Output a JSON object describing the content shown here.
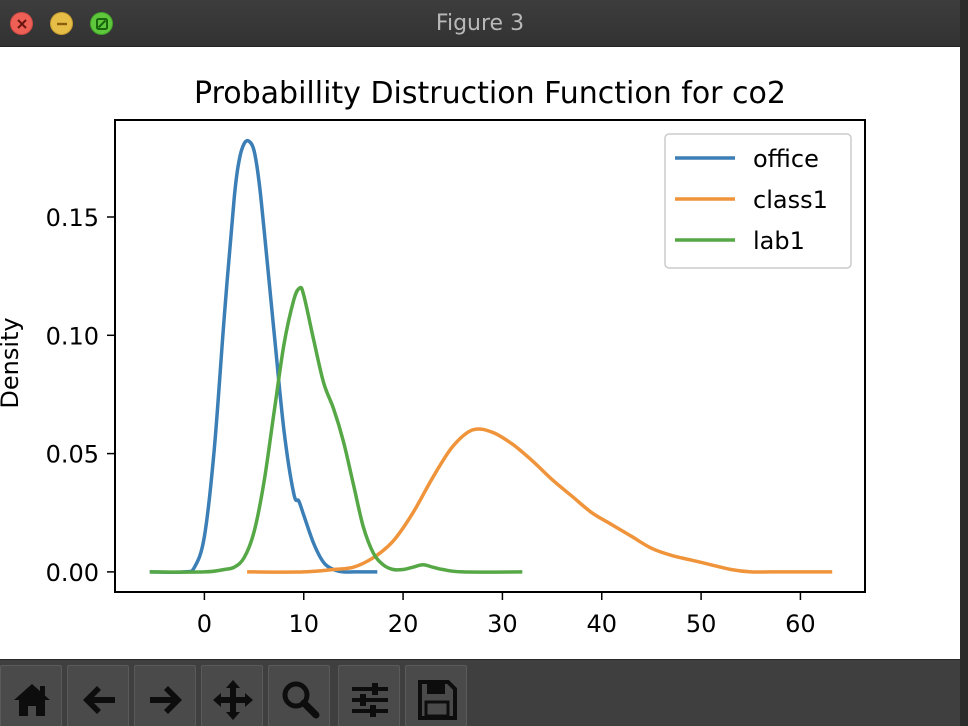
{
  "window": {
    "title": "Figure 3",
    "buttons": [
      "close",
      "minimize",
      "maximize"
    ]
  },
  "toolbar": {
    "tools": [
      {
        "name": "home-icon"
      },
      {
        "name": "back-icon"
      },
      {
        "name": "forward-icon"
      },
      {
        "name": "pan-icon"
      },
      {
        "name": "zoom-icon"
      },
      {
        "name": "configure-subplots-icon"
      },
      {
        "name": "save-icon"
      }
    ]
  },
  "chart_data": {
    "type": "line",
    "title": "Probabillity Distruction Function for co2",
    "xlabel": "",
    "ylabel": "Density",
    "xlim": [
      -9,
      66.5
    ],
    "ylim": [
      -0.0085,
      0.191
    ],
    "xticks": [
      0,
      10,
      20,
      30,
      40,
      50,
      60
    ],
    "yticks": [
      0.0,
      0.05,
      0.1,
      0.15
    ],
    "xtick_labels": [
      "0",
      "10",
      "20",
      "30",
      "40",
      "50",
      "60"
    ],
    "ytick_labels": [
      "0.00",
      "0.05",
      "0.10",
      "0.15"
    ],
    "grid": false,
    "legend": {
      "position": "top-right",
      "entries": [
        "office",
        "class1",
        "lab1"
      ]
    },
    "series": [
      {
        "name": "office",
        "color": "#3b7fb6",
        "x": [
          -5.5,
          -2,
          -1,
          0,
          1,
          2,
          3,
          3.5,
          4,
          4.5,
          5,
          5.5,
          6,
          7,
          8,
          9,
          9.5,
          10,
          11,
          12,
          13,
          14,
          15,
          16,
          17.4
        ],
        "y": [
          0.0,
          0.0,
          0.002,
          0.015,
          0.052,
          0.108,
          0.158,
          0.174,
          0.181,
          0.182,
          0.178,
          0.165,
          0.145,
          0.102,
          0.06,
          0.033,
          0.03,
          0.024,
          0.012,
          0.004,
          0.001,
          0.0,
          0.0,
          0.0,
          0.0
        ]
      },
      {
        "name": "class1",
        "color": "#f0943b",
        "x": [
          4.3,
          10,
          13,
          15,
          17,
          19,
          21,
          23,
          25,
          27,
          29,
          31,
          33,
          35,
          37,
          39,
          41,
          43,
          45,
          47,
          49,
          51,
          53,
          55,
          57,
          63.2
        ],
        "y": [
          0.0,
          0.0,
          0.001,
          0.002,
          0.006,
          0.013,
          0.025,
          0.04,
          0.053,
          0.06,
          0.059,
          0.054,
          0.047,
          0.039,
          0.032,
          0.025,
          0.02,
          0.015,
          0.01,
          0.007,
          0.005,
          0.003,
          0.001,
          0.0,
          0.0,
          0.0
        ]
      },
      {
        "name": "lab1",
        "color": "#55a845",
        "x": [
          -5.5,
          0,
          2,
          3,
          4,
          5,
          6,
          7,
          8,
          9,
          9.6,
          10,
          11,
          12,
          13,
          14,
          15,
          16,
          17,
          18,
          19,
          20,
          21,
          22,
          23,
          24,
          26,
          32
        ],
        "y": [
          0.0,
          0.0,
          0.001,
          0.002,
          0.006,
          0.017,
          0.038,
          0.067,
          0.096,
          0.115,
          0.12,
          0.117,
          0.098,
          0.08,
          0.069,
          0.055,
          0.037,
          0.019,
          0.008,
          0.003,
          0.001,
          0.001,
          0.002,
          0.003,
          0.002,
          0.001,
          0.0,
          0.0
        ]
      }
    ]
  }
}
